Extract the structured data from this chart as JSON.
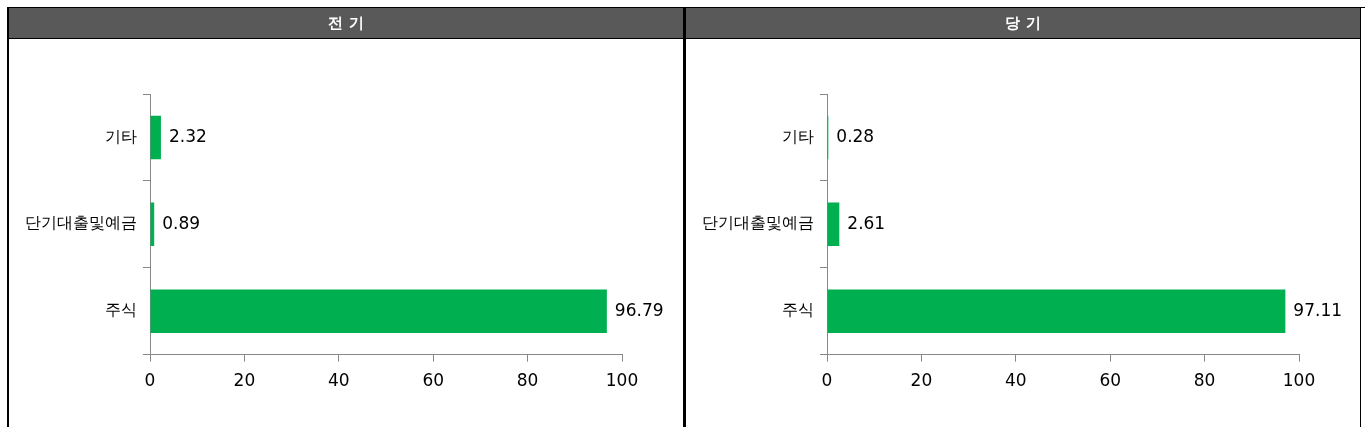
{
  "chart_data": [
    {
      "type": "bar",
      "orientation": "horizontal",
      "title": "전 기",
      "categories": [
        "기타",
        "단기대출및예금",
        "주식"
      ],
      "values": [
        2.32,
        0.89,
        96.79
      ],
      "color": "#00b050",
      "xlim": [
        0,
        100
      ],
      "xticks": [
        0,
        20,
        40,
        60,
        80,
        100
      ],
      "data_labels": true
    },
    {
      "type": "bar",
      "orientation": "horizontal",
      "title": "당 기",
      "categories": [
        "기타",
        "단기대출및예금",
        "주식"
      ],
      "values": [
        0.28,
        2.61,
        97.11
      ],
      "color": "#00b050",
      "xlim": [
        0,
        100
      ],
      "xticks": [
        0,
        20,
        40,
        60,
        80,
        100
      ],
      "data_labels": true
    }
  ]
}
